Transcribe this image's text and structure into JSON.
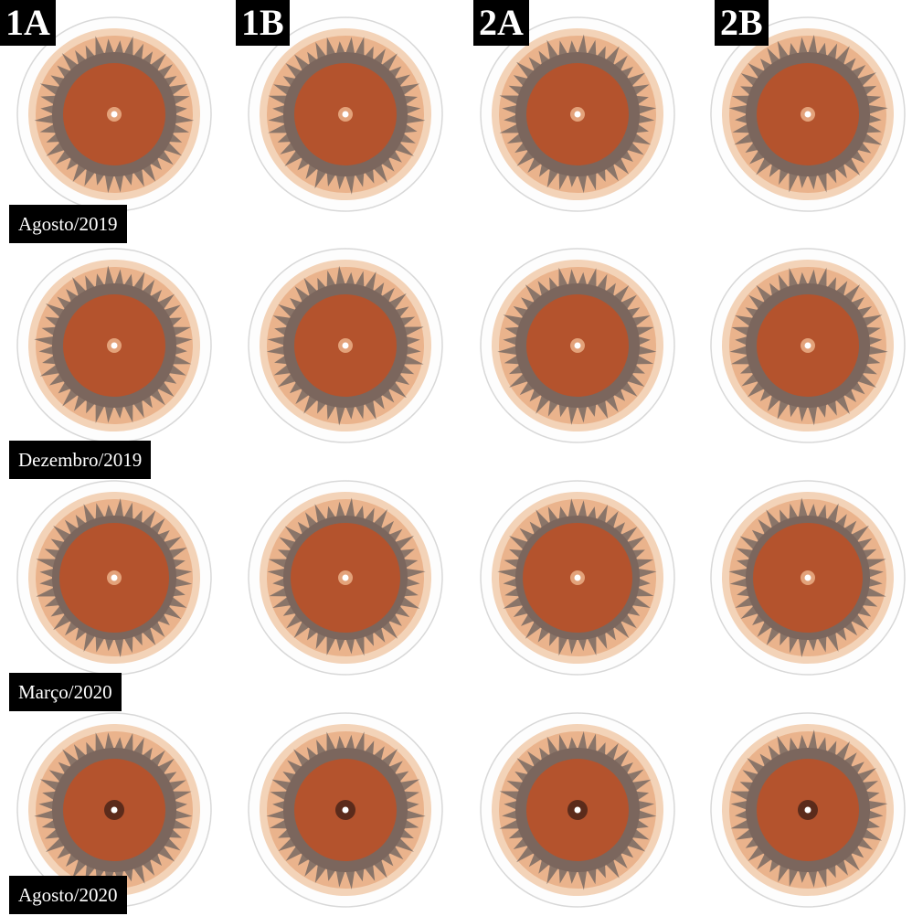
{
  "columns": [
    "1A",
    "1B",
    "2A",
    "2B"
  ],
  "rows": [
    "Agosto/2019",
    "Dezembro/2019",
    "Março/2020",
    "Agosto/2020"
  ]
}
